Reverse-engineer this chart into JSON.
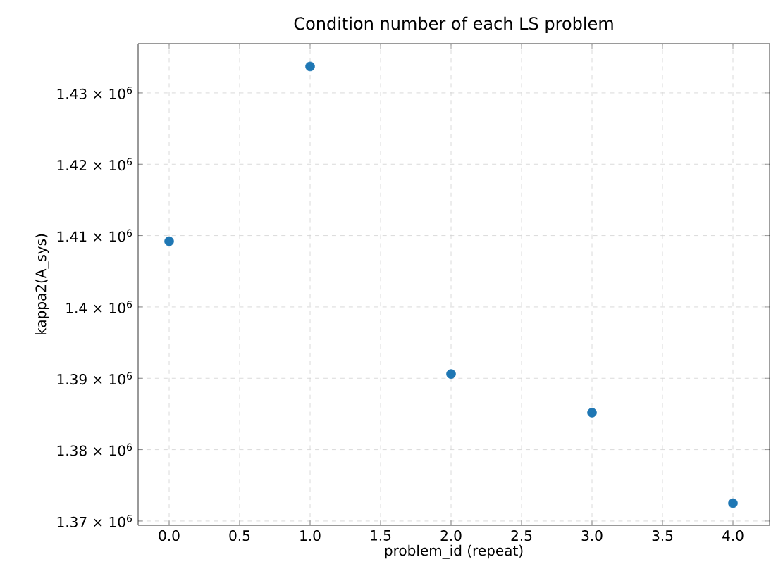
{
  "chart_data": {
    "type": "scatter",
    "title": "Condition number of each LS problem",
    "xlabel": "problem_id (repeat)",
    "ylabel": "kappa2(A_sys)",
    "x": [
      0,
      1,
      2,
      3,
      4
    ],
    "values": [
      1409200,
      1433700,
      1390600,
      1385200,
      1372500
    ],
    "color": "#1f77b4",
    "marker": "circle",
    "grid": true,
    "xlim": [
      -0.22,
      4.26
    ],
    "ylim": [
      1369400,
      1436900
    ],
    "xticks": [
      {
        "value": 0,
        "label": "0.0"
      },
      {
        "value": 0.5,
        "label": "0.5"
      },
      {
        "value": 1,
        "label": "1.0"
      },
      {
        "value": 1.5,
        "label": "1.5"
      },
      {
        "value": 2,
        "label": "2.0"
      },
      {
        "value": 2.5,
        "label": "2.5"
      },
      {
        "value": 3,
        "label": "3.0"
      },
      {
        "value": 3.5,
        "label": "3.5"
      },
      {
        "value": 4,
        "label": "4.0"
      }
    ],
    "yticks": [
      {
        "value": 1370000,
        "label": "1.37 × 10$^{6}$"
      },
      {
        "value": 1380000,
        "label": "1.38 × 10$^{6}$"
      },
      {
        "value": 1390000,
        "label": "1.39 × 10$^{6}$"
      },
      {
        "value": 1400000,
        "label": "1.4 × 10$^{6}$"
      },
      {
        "value": 1410000,
        "label": "1.41 × 10$^{6}$"
      },
      {
        "value": 1420000,
        "label": "1.42 × 10$^{6}$"
      },
      {
        "value": 1430000,
        "label": "1.43 × 10$^{6}$"
      }
    ]
  }
}
